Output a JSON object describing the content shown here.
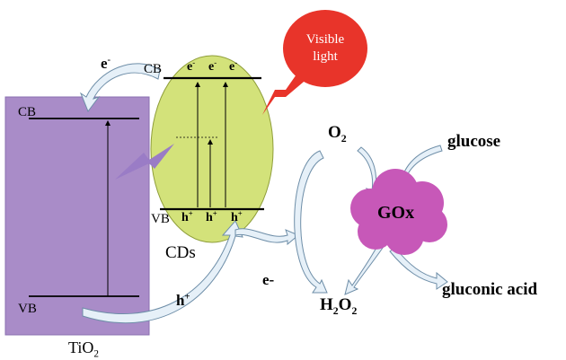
{
  "bubble": {
    "line1": "Visible",
    "line2": "light"
  },
  "tio2": {
    "cb": "CB",
    "vb": "VB",
    "name_main": "TiO",
    "name_sub": "2"
  },
  "cds": {
    "cb": "CB",
    "vb": "VB",
    "name": "CDs",
    "electron_base": "e",
    "electron_charge": "-",
    "hole_base": "h",
    "hole_charge": "+"
  },
  "transfer": {
    "electron_base": "e",
    "electron_charge": "-",
    "hole_base": "h",
    "hole_charge": "+",
    "e_minus": "e-"
  },
  "reaction": {
    "o2_main": "O",
    "o2_sub": "2",
    "h2o2_h": "H",
    "h2o2_sub1": "2",
    "h2o2_o": "O",
    "h2o2_sub2": "2",
    "glucose": "glucose",
    "enzyme": "GOx",
    "product": "gluconic acid"
  },
  "colors": {
    "tio2_fill": "#a98cc8",
    "cds_fill": "#d3e27a",
    "bubble_fill": "#e8342a",
    "bolt_fill": "#e8342a",
    "purple_bolt": "#9a7cc6",
    "gox_fill": "#c758b8",
    "arrow_fill": "#e6f0f8",
    "arrow_stroke": "#6e8ea8"
  }
}
